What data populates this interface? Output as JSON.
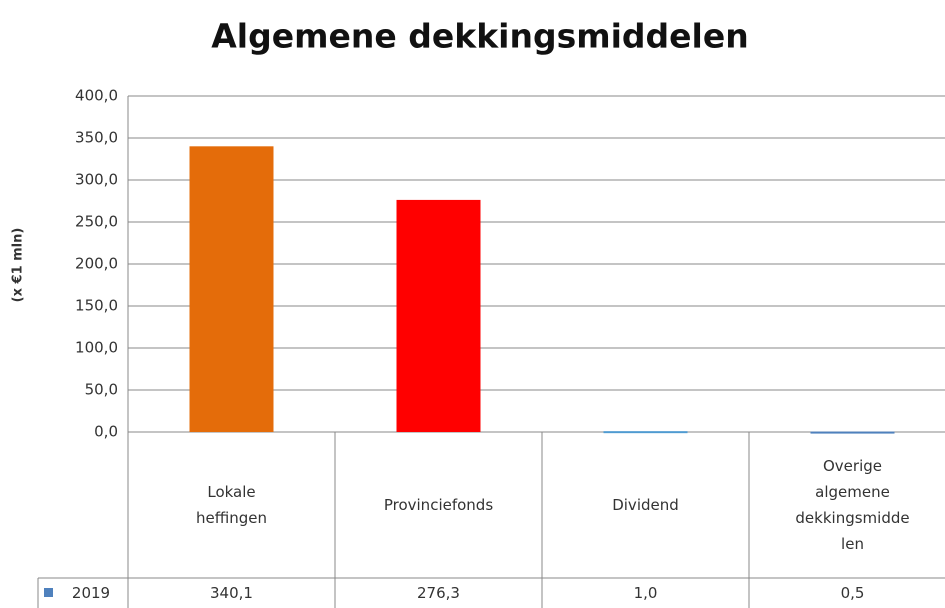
{
  "chart_data": {
    "type": "bar",
    "title": "Algemene dekkingsmiddelen",
    "y_label": "(x €1 mln)",
    "categories": [
      "Lokale heffingen",
      "Provinciefonds",
      "Dividend",
      "Overige algemene dekkingsmiddelen"
    ],
    "series": [
      {
        "name": "2019",
        "color": "#4f81bd",
        "bar_colors": [
          "#e46c0a",
          "#ff0000",
          "#4f9bd1",
          "#4f81bd"
        ],
        "values": [
          340.1,
          276.3,
          1.0,
          0.5
        ],
        "value_labels": [
          "340,1",
          "276,3",
          "1,0",
          "0,5"
        ]
      }
    ],
    "ylim": [
      0,
      400
    ],
    "yticks": [
      {
        "value": 0,
        "label": "0,0"
      },
      {
        "value": 50,
        "label": "50,0"
      },
      {
        "value": 100,
        "label": "100,0"
      },
      {
        "value": 150,
        "label": "150,0"
      },
      {
        "value": 200,
        "label": "200,0"
      },
      {
        "value": 250,
        "label": "250,0"
      },
      {
        "value": 300,
        "label": "300,0"
      },
      {
        "value": 350,
        "label": "350,0"
      },
      {
        "value": 400,
        "label": "400,0"
      }
    ],
    "grid": true
  }
}
